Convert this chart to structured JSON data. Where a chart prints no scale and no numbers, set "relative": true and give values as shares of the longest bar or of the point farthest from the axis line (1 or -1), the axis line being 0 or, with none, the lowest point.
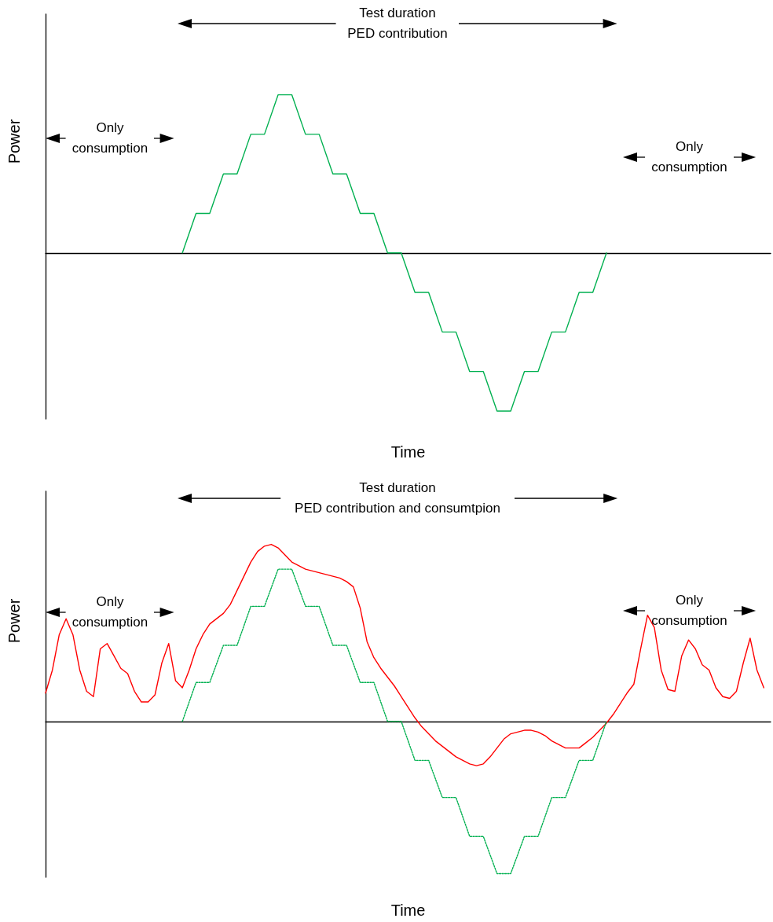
{
  "chart_data": [
    {
      "type": "line",
      "relative": true,
      "xlabel": "Time",
      "ylabel": "Power",
      "annotations": [
        "Test duration\nPED contribution",
        "Only\nconsumption",
        "Only\nconsumption"
      ],
      "categories": [
        null,
        null,
        null,
        null,
        null,
        null,
        null,
        null,
        null,
        null,
        null,
        null,
        null,
        null,
        null,
        null,
        null,
        null,
        null,
        null,
        null,
        null,
        null,
        null,
        null,
        null,
        null,
        null,
        null,
        null,
        null,
        null,
        null,
        null,
        null,
        null,
        null,
        null,
        null,
        null,
        null,
        null,
        null,
        null,
        null,
        null,
        null,
        null,
        null,
        null,
        null,
        null,
        null,
        null
      ],
      "series": [
        {
          "color": "#00b050",
          "line_style": "solid",
          "values": [
            null,
            null,
            null,
            null,
            null,
            null,
            null,
            null,
            null,
            null,
            0,
            0.25,
            0.25,
            0.5,
            0.5,
            0.75,
            0.75,
            1,
            1,
            0.75,
            0.75,
            0.5,
            0.5,
            0.25,
            0.25,
            0,
            0,
            -0.25,
            -0.25,
            -0.5,
            -0.5,
            -0.75,
            -0.75,
            -1,
            -1,
            -0.75,
            -0.75,
            -0.5,
            -0.5,
            -0.25,
            -0.25,
            0,
            null,
            null,
            null,
            null,
            null,
            null,
            null,
            null,
            null,
            null,
            null,
            null
          ]
        }
      ]
    },
    {
      "type": "line",
      "relative": true,
      "xlabel": "Time",
      "ylabel": "Power",
      "annotations": [
        "Test duration\nPED contribution and consumtpion",
        "Only\nconsumption",
        "Only\nconsumption"
      ],
      "categories": [
        null,
        null,
        null,
        null,
        null,
        null,
        null,
        null,
        null,
        null,
        null,
        null,
        null,
        null,
        null,
        null,
        null,
        null,
        null,
        null,
        null,
        null,
        null,
        null,
        null,
        null,
        null,
        null,
        null,
        null,
        null,
        null,
        null,
        null,
        null,
        null,
        null,
        null,
        null,
        null,
        null,
        null,
        null,
        null,
        null,
        null,
        null,
        null,
        null,
        null,
        null,
        null,
        null,
        null,
        null,
        null,
        null,
        null,
        null,
        null,
        null,
        null,
        null,
        null,
        null,
        null,
        null,
        null,
        null,
        null,
        null,
        null,
        null,
        null,
        null,
        null,
        null,
        null,
        null,
        null,
        null,
        null,
        null,
        null,
        null,
        null,
        null,
        null,
        null,
        null,
        null,
        null,
        null,
        null,
        null,
        null,
        null,
        null,
        null,
        null,
        null,
        null,
        null,
        null,
        null,
        null,
        null
      ],
      "series": [
        {
          "color": "#ff0000",
          "line_style": "solid",
          "values": [
            0.16,
            0.29,
            0.49,
            0.58,
            0.49,
            0.29,
            0.17,
            0.14,
            0.41,
            0.44,
            0.37,
            0.3,
            0.27,
            0.17,
            0.11,
            0.11,
            0.15,
            0.33,
            0.44,
            0.23,
            0.19,
            0.29,
            0.41,
            0.49,
            0.55,
            0.58,
            0.61,
            0.66,
            0.74,
            0.82,
            0.9,
            0.96,
            0.99,
            1,
            0.98,
            0.94,
            0.9,
            0.88,
            0.86,
            0.85,
            0.84,
            0.83,
            0.82,
            0.81,
            0.79,
            0.76,
            0.64,
            0.45,
            0.36,
            0.3,
            0.25,
            0.2,
            0.14,
            0.08,
            0.02,
            -0.03,
            -0.07,
            -0.11,
            -0.14,
            -0.17,
            -0.2,
            -0.22,
            -0.24,
            -0.25,
            -0.24,
            -0.2,
            -0.15,
            -0.1,
            -0.07,
            -0.06,
            -0.05,
            -0.05,
            -0.06,
            -0.08,
            -0.11,
            -0.13,
            -0.15,
            -0.15,
            -0.15,
            -0.12,
            -0.09,
            -0.05,
            -0.01,
            0.04,
            0.1,
            0.16,
            0.21,
            0.41,
            0.6,
            0.53,
            0.29,
            0.18,
            0.17,
            0.37,
            0.46,
            0.41,
            0.32,
            0.29,
            0.19,
            0.14,
            0.13,
            0.17,
            0.33,
            0.47,
            0.29,
            0.19,
            null
          ]
        },
        {
          "color": "#00b050",
          "line_style": "dotted",
          "values": [
            null,
            null,
            null,
            null,
            null,
            null,
            null,
            null,
            null,
            null,
            null,
            null,
            null,
            null,
            null,
            null,
            null,
            null,
            null,
            null,
            0,
            null,
            0.22,
            null,
            0.22,
            null,
            0.43,
            null,
            0.43,
            null,
            0.65,
            null,
            0.65,
            null,
            0.86,
            null,
            0.86,
            null,
            0.65,
            null,
            0.65,
            null,
            0.43,
            null,
            0.43,
            null,
            0.22,
            null,
            0.22,
            null,
            0,
            null,
            0,
            null,
            -0.22,
            null,
            -0.22,
            null,
            -0.43,
            null,
            -0.43,
            null,
            -0.65,
            null,
            -0.65,
            null,
            -0.86,
            null,
            -0.86,
            null,
            -0.65,
            null,
            -0.65,
            null,
            -0.43,
            null,
            -0.43,
            null,
            -0.22,
            null,
            -0.22,
            null,
            0,
            null,
            null,
            null,
            null,
            null,
            null,
            null,
            null,
            null,
            null,
            null,
            null,
            null,
            null,
            null,
            null,
            null,
            null,
            null,
            null,
            null,
            null,
            null,
            null
          ]
        }
      ]
    }
  ]
}
